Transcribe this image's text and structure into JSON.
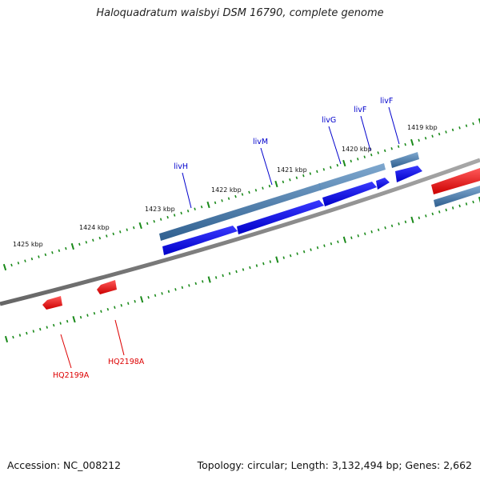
{
  "title": "Haloquadratum walsbyi DSM 16790, complete genome",
  "footer": {
    "accession": "Accession: NC_008212",
    "topology": "Topology: circular; Length: 3,132,494 bp; Genes: 2,662"
  },
  "ruler": {
    "tick_labels": [
      "1425 kbp",
      "1424 kbp",
      "1423 kbp",
      "1422 kbp",
      "1421 kbp",
      "1420 kbp",
      "1419 kbp"
    ]
  },
  "genes": {
    "top_strand_labels": [
      "livH",
      "livM",
      "livG",
      "livF",
      "livF"
    ],
    "bottom_strand_labels": [
      "HQ2199A",
      "HQ2198A"
    ]
  },
  "colors": {
    "backbone": "#7a7a7a",
    "tick": "#1a8a1a",
    "cds_blue": "#0000ee",
    "gene_steel": "#4a7fb5",
    "cds_red": "#ee0000",
    "label_blue": "#0000cc",
    "label_red": "#dd0000"
  }
}
